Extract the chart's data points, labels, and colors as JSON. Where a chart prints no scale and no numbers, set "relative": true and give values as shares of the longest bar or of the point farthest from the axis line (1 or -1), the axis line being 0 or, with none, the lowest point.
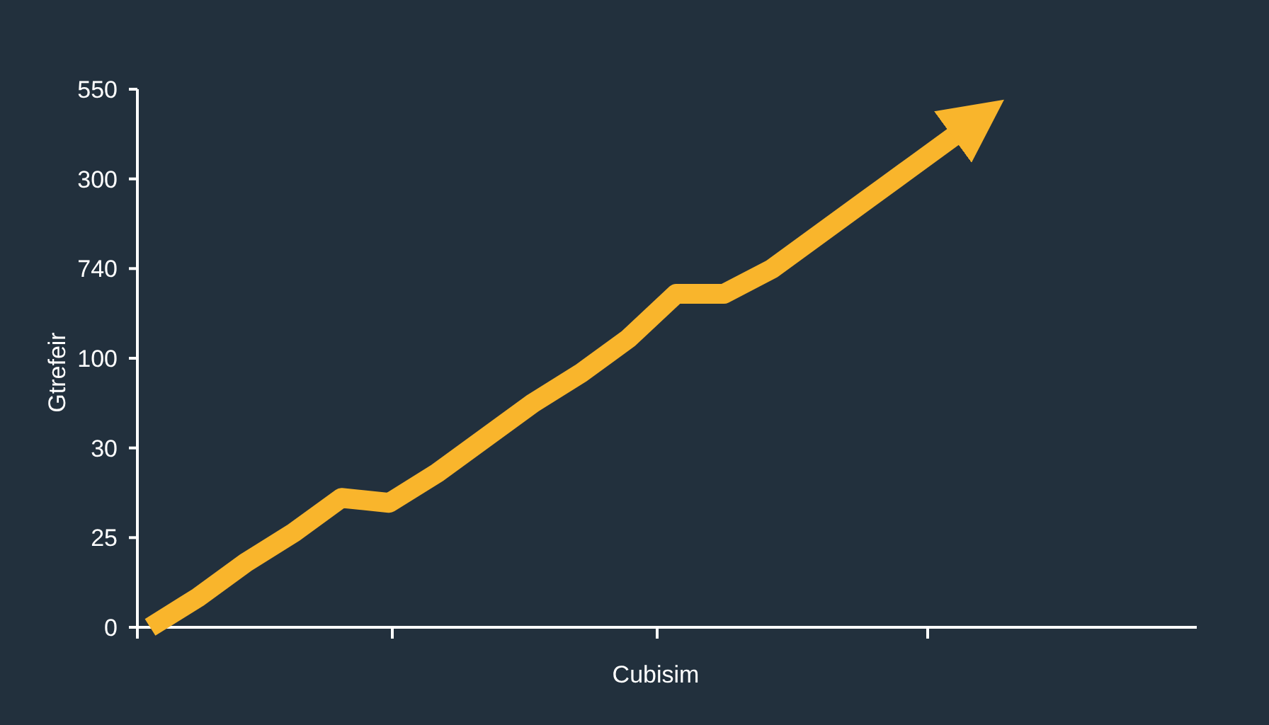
{
  "chart_data": {
    "type": "line",
    "xlabel": "Cubisim",
    "ylabel": "Gtrefeir",
    "relative": true,
    "categories": [
      null,
      null,
      null,
      null,
      null,
      null,
      null,
      null,
      null,
      null,
      null,
      null,
      null,
      null,
      null,
      null,
      null,
      null
    ],
    "series": [
      {
        "color": "#f9b52c",
        "values": [
          0,
          0.06,
          0.13,
          0.19,
          0.26,
          0.25,
          0.31,
          0.38,
          0.45,
          0.51,
          0.58,
          0.67,
          0.67,
          0.72,
          0.79,
          0.86,
          0.93,
          1
        ]
      }
    ],
    "annotations": [
      "550",
      "300",
      "740",
      "100",
      "30",
      "25",
      "0"
    ],
    "grid": false,
    "marker": "none",
    "line_style": "solid"
  }
}
